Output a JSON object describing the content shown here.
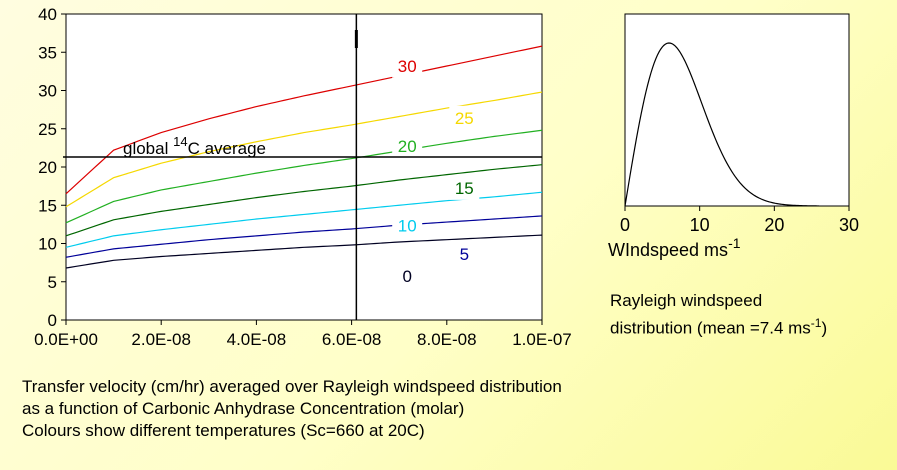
{
  "chart_data": [
    {
      "type": "line",
      "xlabel": "",
      "ylabel": "",
      "xlim": [
        0,
        1e-07
      ],
      "ylim": [
        0,
        40
      ],
      "x_ticks": [
        "0.0E+00",
        "2.0E-08",
        "4.0E-08",
        "6.0E-08",
        "8.0E-08",
        "1.0E-07"
      ],
      "y_ticks": [
        "0",
        "5",
        "10",
        "15",
        "20",
        "25",
        "30",
        "35",
        "40"
      ],
      "x": [
        0,
        1e-08,
        2e-08,
        3e-08,
        4e-08,
        5e-08,
        6e-08,
        7e-08,
        8e-08,
        9e-08,
        1e-07
      ],
      "series": [
        {
          "name": "30",
          "color": "#dd0000",
          "values": [
            16.5,
            22.2,
            24.5,
            26.3,
            27.9,
            29.3,
            30.6,
            31.9,
            33.2,
            34.5,
            35.8
          ]
        },
        {
          "name": "25",
          "color": "#f5d800",
          "values": [
            14.8,
            18.6,
            20.5,
            22.0,
            23.3,
            24.5,
            25.5,
            26.6,
            27.7,
            28.7,
            29.8
          ]
        },
        {
          "name": "20",
          "color": "#22b022",
          "values": [
            12.7,
            15.5,
            17.0,
            18.1,
            19.2,
            20.2,
            21.1,
            22.1,
            23.1,
            24.0,
            24.8
          ]
        },
        {
          "name": "15",
          "color": "#006600",
          "values": [
            11.0,
            13.1,
            14.2,
            15.1,
            16.0,
            16.8,
            17.5,
            18.3,
            19.0,
            19.7,
            20.3
          ]
        },
        {
          "name": "10",
          "color": "#00ccee",
          "values": [
            9.5,
            11.0,
            11.8,
            12.5,
            13.2,
            13.8,
            14.4,
            15.0,
            15.6,
            16.1,
            16.7
          ]
        },
        {
          "name": "5",
          "color": "#000099",
          "values": [
            8.2,
            9.3,
            9.9,
            10.5,
            11.0,
            11.5,
            11.9,
            12.4,
            12.8,
            13.2,
            13.6
          ]
        },
        {
          "name": "0",
          "color": "#000022",
          "values": [
            6.8,
            7.8,
            8.3,
            8.7,
            9.1,
            9.5,
            9.8,
            10.2,
            10.5,
            10.8,
            11.1
          ]
        }
      ],
      "reference_lines": {
        "horizontal": {
          "y": 21.3,
          "label_prefix": "global ",
          "label_sup": "14",
          "label_suffix": "C average"
        },
        "vertical": {
          "x": 6.1e-08
        }
      },
      "grid": false
    },
    {
      "type": "line",
      "xlabel_prefix": "WIndspeed ms",
      "xlabel_sup": "-1",
      "xlim": [
        0,
        30
      ],
      "x_ticks": [
        "0",
        "10",
        "20",
        "30"
      ],
      "grid": false,
      "x": [
        0,
        1,
        2,
        3,
        4,
        5,
        6,
        7,
        8,
        10,
        12,
        14,
        16,
        18,
        20,
        22,
        24,
        26
      ],
      "series": [
        {
          "name": "",
          "color": "#000000",
          "values": [
            0,
            0.27,
            0.52,
            0.72,
            0.87,
            0.96,
            1.0,
            0.98,
            0.93,
            0.78,
            0.59,
            0.41,
            0.26,
            0.15,
            0.08,
            0.04,
            0.02,
            0.008
          ]
        }
      ]
    }
  ],
  "captions": {
    "main": [
      "Transfer velocity (cm/hr) averaged over Rayleigh windspeed distribution",
      "as a function of Carbonic Anhydrase Concentration (molar)",
      "Colours show different temperatures (Sc=660 at 20C)"
    ],
    "rayleigh_line1": "Rayleigh windspeed",
    "rayleigh_line2_prefix": "distribution (mean =7.4 ms",
    "rayleigh_line2_sup": "-1",
    "rayleigh_line2_suffix": ")"
  }
}
